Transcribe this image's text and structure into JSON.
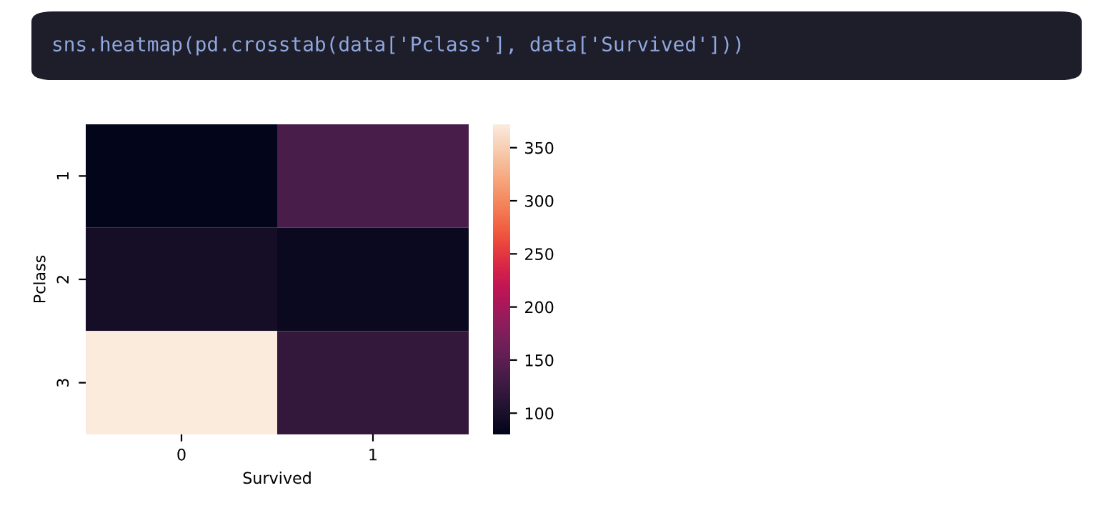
{
  "chart_data": {
    "type": "heatmap",
    "annotations": [
      "sns.heatmap(pd.crosstab(data['Pclass'], data['Survived']))"
    ],
    "xlabel": "Survived",
    "ylabel": "Pclass",
    "categories": [
      "0",
      "1"
    ],
    "y_categories": [
      "1",
      "2",
      "3"
    ],
    "cells": [
      [
        80,
        136
      ],
      [
        97,
        87
      ],
      [
        372,
        119
      ]
    ],
    "clim": [
      80,
      372
    ],
    "cticks": [
      100,
      150,
      200,
      250,
      300,
      350
    ]
  }
}
